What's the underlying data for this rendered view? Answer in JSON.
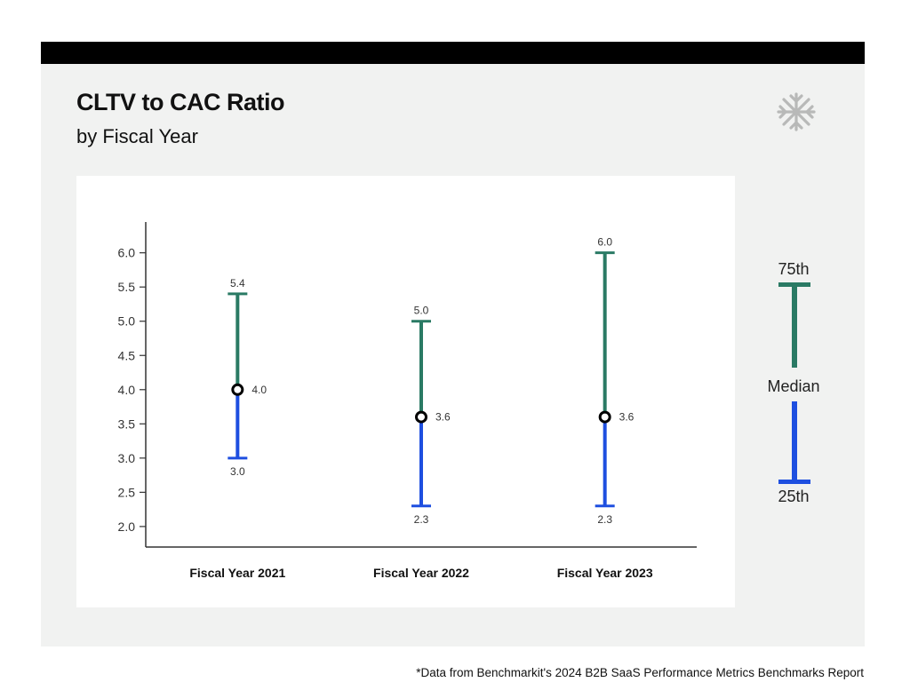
{
  "header": {
    "title": "CLTV to CAC Ratio",
    "subtitle": "by Fiscal Year"
  },
  "logo": {
    "icon": "snowflake-star-icon",
    "color": "#b8b9b8"
  },
  "legend": {
    "top_label": "75th",
    "middle_label": "Median",
    "bottom_label": "25th",
    "upper_color": "#2a7a64",
    "lower_color": "#1e4fe0"
  },
  "footnote": "*Data from Benchmarkit's 2024 B2B SaaS Performance Metrics Benchmarks Report",
  "chart_data": {
    "type": "range",
    "title": "CLTV to CAC Ratio",
    "subtitle": "by Fiscal Year",
    "xlabel": "",
    "ylabel": "",
    "ylim": [
      1.7,
      6.45
    ],
    "yticks": [
      "2.0",
      "2.5",
      "3.0",
      "3.5",
      "4.0",
      "4.5",
      "5.0",
      "5.5",
      "6.0"
    ],
    "categories": [
      "Fiscal Year 2021",
      "Fiscal Year 2022",
      "Fiscal Year 2023"
    ],
    "series": [
      {
        "name": "25th",
        "values": [
          3.0,
          2.3,
          2.3
        ],
        "labels": [
          "3.0",
          "2.3",
          "2.3"
        ],
        "color": "#1e4fe0"
      },
      {
        "name": "Median",
        "values": [
          4.0,
          3.6,
          3.6
        ],
        "labels": [
          "4.0",
          "3.6",
          "3.6"
        ],
        "color": "#000000"
      },
      {
        "name": "75th",
        "values": [
          5.4,
          5.0,
          6.0
        ],
        "labels": [
          "5.4",
          "5.0",
          "6.0"
        ],
        "color": "#2a7a64"
      }
    ]
  }
}
